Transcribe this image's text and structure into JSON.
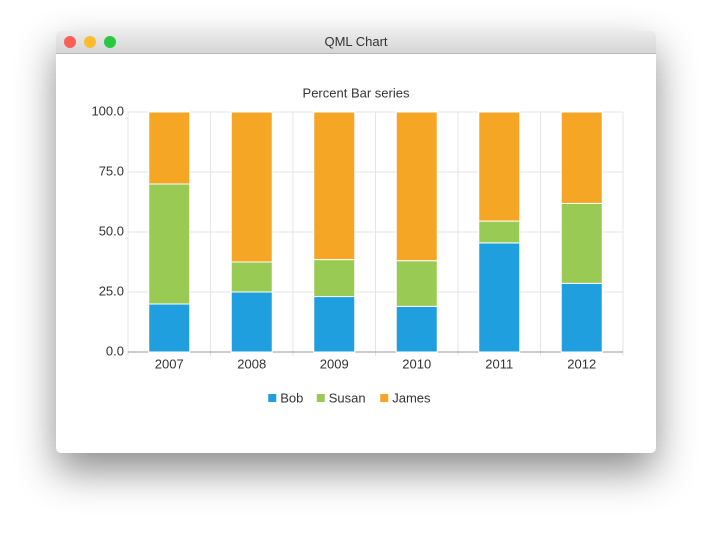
{
  "window": {
    "title": "QML Chart"
  },
  "chart_data": {
    "type": "percent-bar",
    "title": "Percent Bar series",
    "categories": [
      "2007",
      "2008",
      "2009",
      "2010",
      "2011",
      "2012"
    ],
    "series": [
      {
        "name": "Bob",
        "color": "#209fdf",
        "values": [
          20,
          25,
          23.1,
          19,
          45.5,
          28.6
        ]
      },
      {
        "name": "Susan",
        "color": "#99ca53",
        "values": [
          50,
          12.5,
          15.4,
          19,
          9.1,
          33.3
        ]
      },
      {
        "name": "James",
        "color": "#f6a625",
        "values": [
          30,
          62.5,
          61.5,
          61.9,
          45.5,
          38.1
        ]
      }
    ],
    "ylim": [
      0,
      100
    ],
    "yticks": [
      {
        "value": 0,
        "label": "0.0"
      },
      {
        "value": 25,
        "label": "25.0"
      },
      {
        "value": 50,
        "label": "50.0"
      },
      {
        "value": 75,
        "label": "75.0"
      },
      {
        "value": 100,
        "label": "100.0"
      }
    ],
    "grid": true,
    "legend": "bottom"
  }
}
